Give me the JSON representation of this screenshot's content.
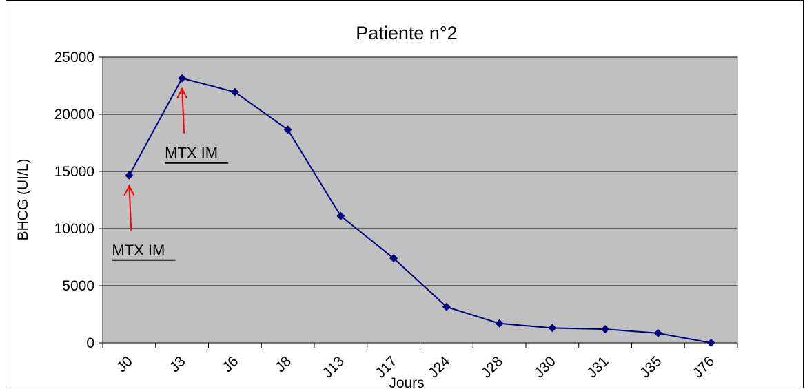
{
  "chart_data": {
    "type": "line",
    "title": "Patiente n°2",
    "xlabel": "Jours",
    "ylabel": "BHCG (UI/L)",
    "ylim": [
      0,
      25000
    ],
    "yticks": [
      0,
      5000,
      10000,
      15000,
      20000,
      25000
    ],
    "grid": "horizontal",
    "categories": [
      "J0",
      "J3",
      "J6",
      "J8",
      "J13",
      "J17",
      "J24",
      "J28",
      "J30",
      "J31",
      "J35",
      "J76"
    ],
    "series": [
      {
        "values": [
          14650,
          23150,
          21950,
          18650,
          11100,
          7400,
          3150,
          1700,
          1300,
          1200,
          850,
          0
        ],
        "color": "#000080"
      }
    ],
    "annotations": [
      {
        "text": "MTX IM",
        "category": "J0",
        "arrow_color": "#ff0000"
      },
      {
        "text": "MTX IM",
        "category": "J3",
        "arrow_color": "#ff0000"
      }
    ],
    "plot_background": "#c0c0c0"
  }
}
